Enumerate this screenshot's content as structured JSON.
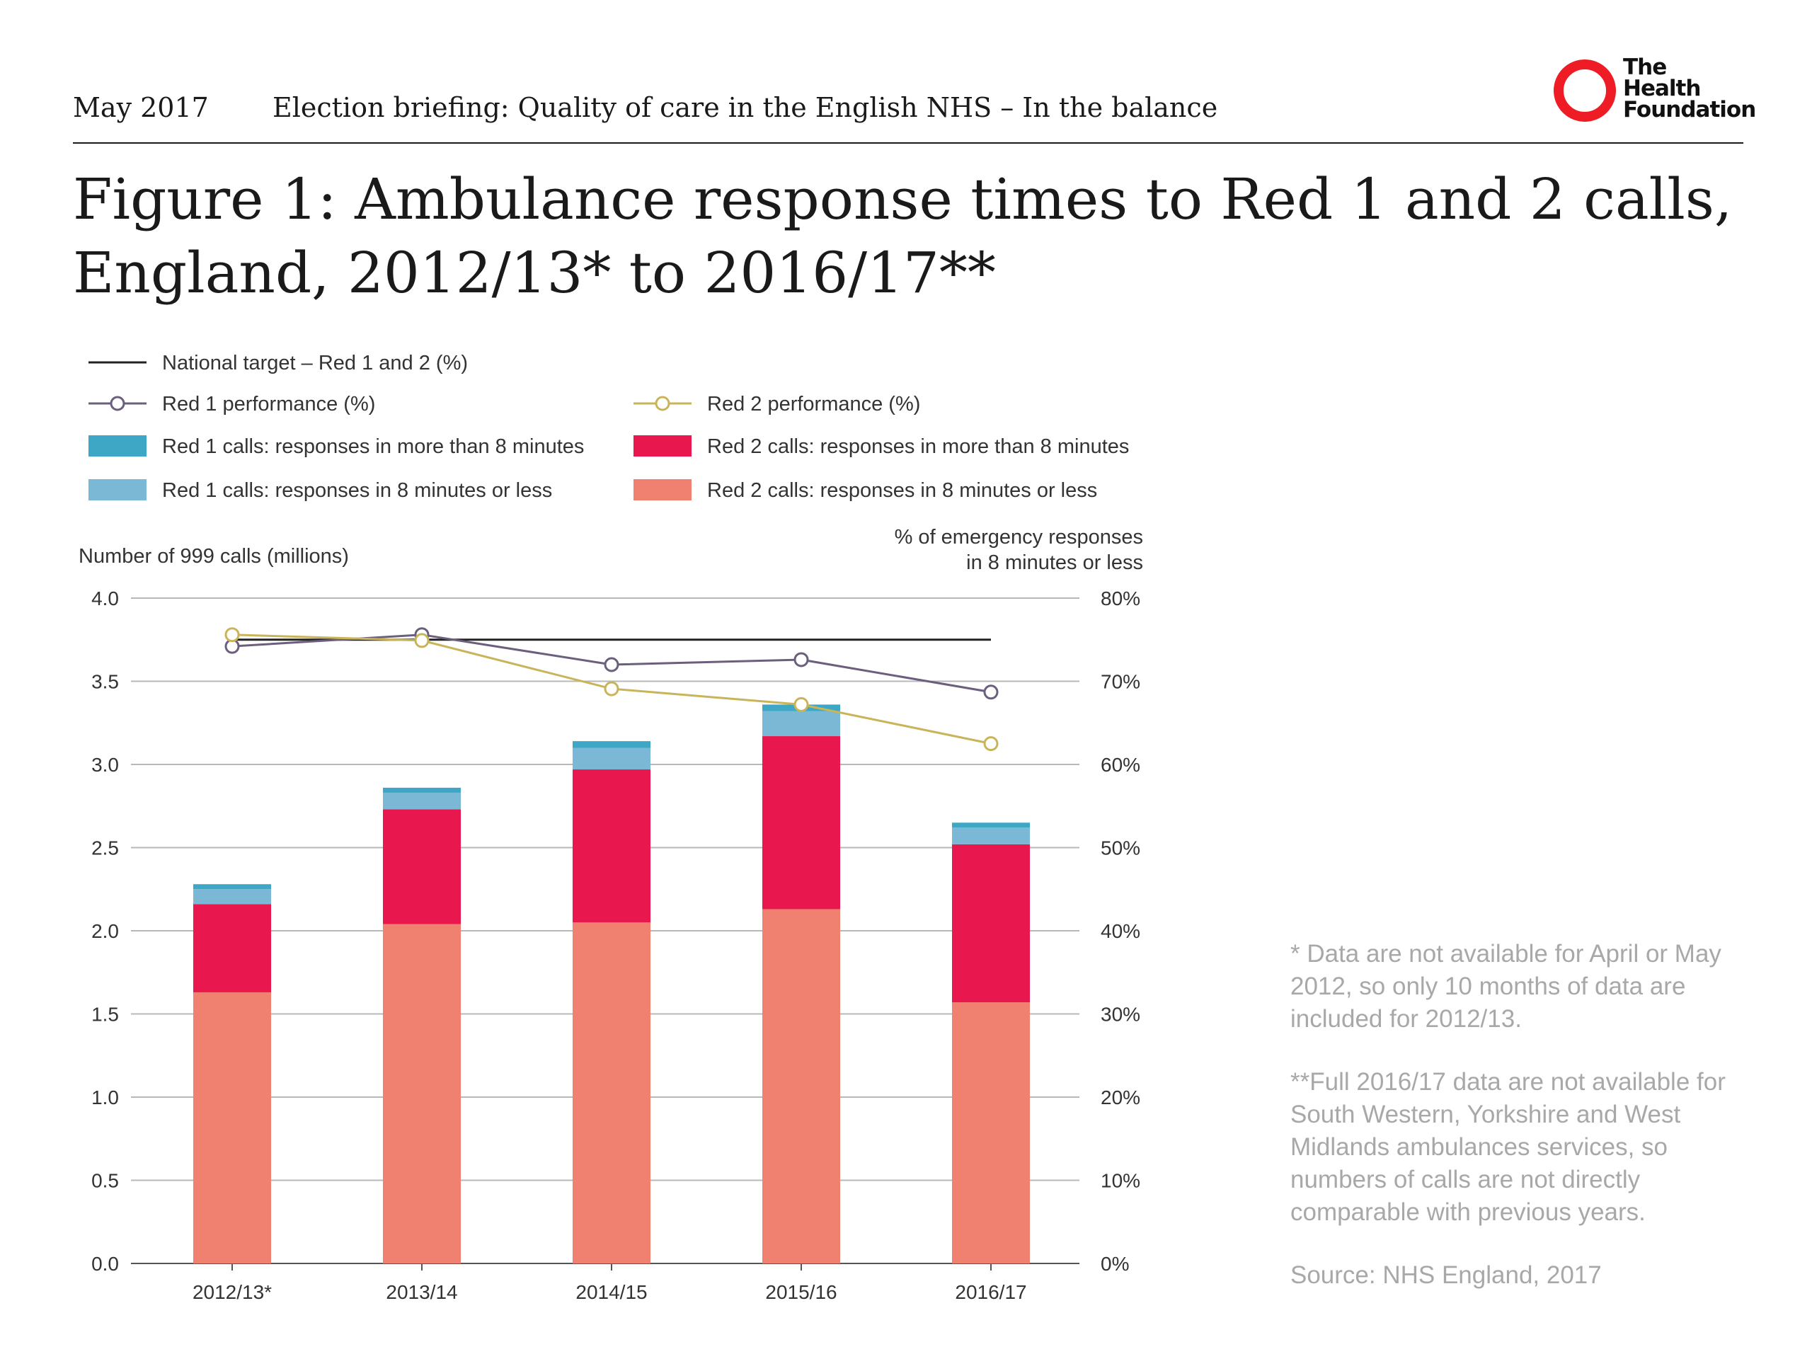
{
  "header": {
    "date": "May 2017",
    "briefing": "Election briefing: Quality of care in the English NHS – In the balance"
  },
  "logo": {
    "lines": [
      "The",
      "Health",
      "Foundation"
    ],
    "color": "#ee1c25"
  },
  "title": {
    "line1": "Figure 1: Ambulance response times to Red 1 and 2 calls,",
    "line2": "England, 2012/13* to 2016/17**"
  },
  "notes": {
    "note1": "* Data are not available for April or May 2012, so only 10 months of data are included for 2012/13.",
    "note2": "**Full 2016/17 data are not available for South Western, Yorkshire and West Midlands ambulances services, so numbers of calls are not directly comparable with previous years.",
    "source": "Source: NHS England, 2017"
  },
  "chart_data": {
    "type": "bar",
    "stacked": true,
    "categories": [
      "2012/13*",
      "2013/14",
      "2014/15",
      "2015/16",
      "2016/17"
    ],
    "ylabel_left": "Number of 999 calls (millions)",
    "ylabel_right_line1": "% of emergency responses",
    "ylabel_right_line2": "in 8 minutes or less",
    "ylim_left": [
      0,
      4.0
    ],
    "ylim_right": [
      0,
      80
    ],
    "left_ticks": [
      "0.0",
      "0.5",
      "1.0",
      "1.5",
      "2.0",
      "2.5",
      "3.0",
      "3.5",
      "4.0"
    ],
    "right_ticks": [
      "0%",
      "10%",
      "20%",
      "30%",
      "40%",
      "50%",
      "60%",
      "70%",
      "80%"
    ],
    "grid": true,
    "legend_position": "top",
    "series": [
      {
        "name": "Red 2 calls: responses in 8 minutes or less",
        "values": [
          1.63,
          2.04,
          2.05,
          2.13,
          1.57
        ],
        "color": "#f08070"
      },
      {
        "name": "Red 2 calls: responses in more than 8 minutes",
        "values": [
          0.53,
          0.69,
          0.92,
          1.04,
          0.95
        ],
        "color": "#e8174e"
      },
      {
        "name": "Red 1 calls: responses in 8 minutes or less",
        "values": [
          0.09,
          0.1,
          0.13,
          0.15,
          0.1
        ],
        "color": "#7ab8d6"
      },
      {
        "name": "Red 1 calls: responses in more than 8 minutes",
        "values": [
          0.03,
          0.03,
          0.04,
          0.04,
          0.03
        ],
        "color": "#3fa7c6"
      }
    ],
    "lines": [
      {
        "name": "National target – Red 1 and 2 (%)",
        "values": [
          75,
          75,
          75,
          75,
          75
        ],
        "color": "#222222",
        "marker": false
      },
      {
        "name": "Red 1 performance (%)",
        "values": [
          74.2,
          75.6,
          72.0,
          72.6,
          68.7
        ],
        "color": "#6b5f7d",
        "marker": true
      },
      {
        "name": "Red 2 performance (%)",
        "values": [
          75.6,
          74.9,
          69.1,
          67.2,
          62.5
        ],
        "color": "#c9b45a",
        "marker": true
      }
    ],
    "legend": [
      {
        "label": "National target – Red 1 and 2 (%)",
        "kind": "line",
        "color": "#222222"
      },
      {
        "label": "Red 1 performance (%)",
        "kind": "line-marker",
        "color": "#6b5f7d"
      },
      {
        "label": "Red 2 performance (%)",
        "kind": "line-marker",
        "color": "#c9b45a"
      },
      {
        "label": "Red 1 calls: responses in more than 8 minutes",
        "kind": "box",
        "color": "#3fa7c6"
      },
      {
        "label": "Red 2 calls: responses in more than 8 minutes",
        "kind": "box",
        "color": "#e8174e"
      },
      {
        "label": "Red 1 calls: responses in 8 minutes or less",
        "kind": "box",
        "color": "#7ab8d6"
      },
      {
        "label": "Red 2 calls: responses in 8 minutes or less",
        "kind": "box",
        "color": "#f08070"
      }
    ]
  }
}
